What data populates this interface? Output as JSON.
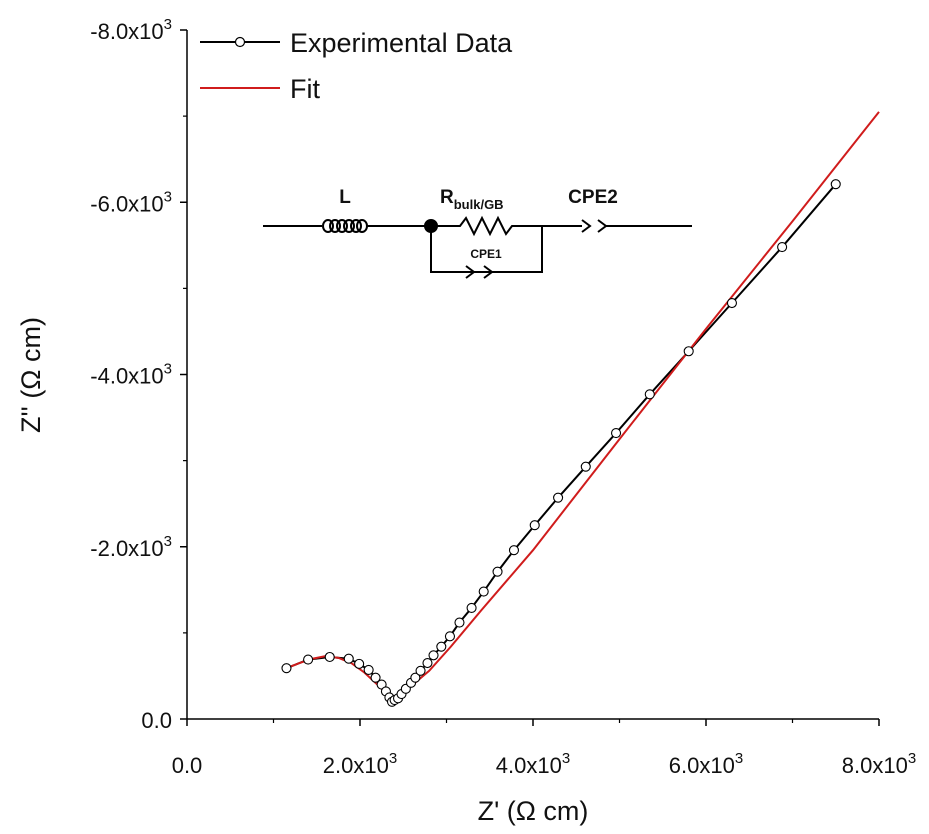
{
  "chart_data": {
    "type": "line",
    "xlabel": "Z' (Ω cm)",
    "ylabel": "Z'' (Ω cm)",
    "xlim": [
      0,
      8000
    ],
    "ylim": [
      0,
      -8000
    ],
    "x_ticks": [
      0,
      2000,
      4000,
      6000,
      8000
    ],
    "x_tick_labels": [
      {
        "mant": "0.0",
        "exp": ""
      },
      {
        "mant": "2.0x10",
        "exp": "3"
      },
      {
        "mant": "4.0x10",
        "exp": "3"
      },
      {
        "mant": "6.0x10",
        "exp": "3"
      },
      {
        "mant": "8.0x10",
        "exp": "3"
      }
    ],
    "y_ticks": [
      0,
      -2000,
      -4000,
      -6000,
      -8000
    ],
    "y_tick_labels": [
      {
        "mant": "0.0",
        "exp": ""
      },
      {
        "mant": "-2.0x10",
        "exp": "3"
      },
      {
        "mant": "-4.0x10",
        "exp": "3"
      },
      {
        "mant": "-6.0x10",
        "exp": "3"
      },
      {
        "mant": "-8.0x10",
        "exp": "3"
      }
    ],
    "legend": {
      "placement": "top-left"
    },
    "series": [
      {
        "name": "Experimental Data",
        "color": "#000000",
        "marker": "open-circle",
        "x": [
          1150,
          1400,
          1650,
          1870,
          1990,
          2100,
          2180,
          2250,
          2300,
          2340,
          2370,
          2400,
          2440,
          2480,
          2530,
          2590,
          2640,
          2700,
          2780,
          2850,
          2940,
          3040,
          3150,
          3290,
          3430,
          3590,
          3780,
          4020,
          4290,
          4610,
          4960,
          5350,
          5800,
          6300,
          6880,
          7500
        ],
        "y": [
          -590,
          -690,
          -720,
          -700,
          -640,
          -570,
          -480,
          -400,
          -320,
          -250,
          -200,
          -220,
          -240,
          -290,
          -350,
          -420,
          -480,
          -560,
          -650,
          -740,
          -840,
          -960,
          -1120,
          -1290,
          -1480,
          -1710,
          -1960,
          -2250,
          -2570,
          -2930,
          -3320,
          -3770,
          -4270,
          -4830,
          -5480,
          -6210
        ]
      },
      {
        "name": "Fit",
        "color": "#d01c1c",
        "x": [
          1150,
          1300,
          1450,
          1600,
          1750,
          1900,
          2050,
          2200,
          2300,
          2380,
          2420,
          2480,
          2600,
          2800,
          3050,
          3400,
          4000,
          5000,
          6000,
          7000,
          8000
        ],
        "y": [
          -590,
          -650,
          -700,
          -730,
          -710,
          -650,
          -540,
          -400,
          -300,
          -250,
          -260,
          -300,
          -390,
          -560,
          -840,
          -1260,
          -1960,
          -3250,
          -4530,
          -5780,
          -7050
        ]
      }
    ],
    "inset_circuit": {
      "labels": {
        "inductor": "L",
        "resistor_main": "R",
        "resistor_sub": "bulk/GB",
        "cpe_series": "CPE2",
        "cpe_parallel": "CPE1"
      }
    }
  }
}
